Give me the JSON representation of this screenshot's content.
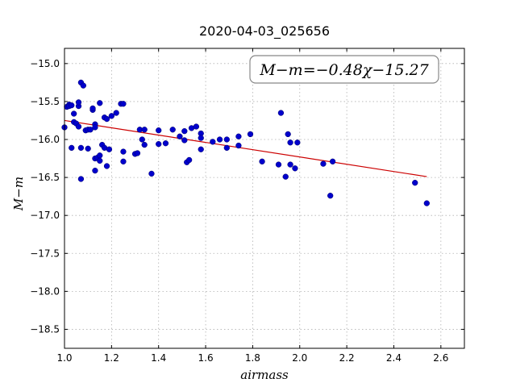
{
  "chart_data": {
    "type": "scatter",
    "title": "2020-04-03_025656",
    "xlabel": "airmass",
    "ylabel": "M−m",
    "xlim": [
      1.0,
      2.7
    ],
    "ylim": [
      -18.75,
      -14.8
    ],
    "xticks": [
      "1.0",
      "1.2",
      "1.4",
      "1.6",
      "1.8",
      "2.0",
      "2.2",
      "2.4",
      "2.6"
    ],
    "yticks": [
      "−15.0",
      "−15.5",
      "−16.0",
      "−16.5",
      "−17.0",
      "−17.5",
      "−18.0",
      "−18.5"
    ],
    "xtick_values": [
      1.0,
      1.2,
      1.4,
      1.6,
      1.8,
      2.0,
      2.2,
      2.4,
      2.6
    ],
    "ytick_values": [
      -15.0,
      -15.5,
      -16.0,
      -16.5,
      -17.0,
      -17.5,
      -18.0,
      -18.5
    ],
    "grid": true,
    "annotation": "M−m=−0.48χ−15.27",
    "fit": {
      "slope": -0.48,
      "intercept": -15.27,
      "x_range": [
        1.0,
        2.54
      ],
      "color": "#cc0000"
    },
    "point_color": "#0000cc",
    "points": [
      [
        1.0,
        -15.84
      ],
      [
        1.01,
        -15.57
      ],
      [
        1.02,
        -15.54
      ],
      [
        1.02,
        -15.56
      ],
      [
        1.03,
        -15.55
      ],
      [
        1.03,
        -16.11
      ],
      [
        1.04,
        -15.66
      ],
      [
        1.04,
        -15.77
      ],
      [
        1.05,
        -15.79
      ],
      [
        1.06,
        -15.56
      ],
      [
        1.06,
        -15.51
      ],
      [
        1.06,
        -15.83
      ],
      [
        1.07,
        -15.25
      ],
      [
        1.07,
        -16.11
      ],
      [
        1.07,
        -16.52
      ],
      [
        1.08,
        -15.29
      ],
      [
        1.09,
        -15.88
      ],
      [
        1.1,
        -15.87
      ],
      [
        1.1,
        -16.12
      ],
      [
        1.11,
        -15.87
      ],
      [
        1.12,
        -15.61
      ],
      [
        1.12,
        -15.59
      ],
      [
        1.13,
        -15.8
      ],
      [
        1.13,
        -15.84
      ],
      [
        1.13,
        -16.25
      ],
      [
        1.13,
        -16.41
      ],
      [
        1.14,
        -16.24
      ],
      [
        1.15,
        -15.52
      ],
      [
        1.15,
        -16.21
      ],
      [
        1.15,
        -16.28
      ],
      [
        1.16,
        -16.07
      ],
      [
        1.17,
        -15.71
      ],
      [
        1.17,
        -16.11
      ],
      [
        1.18,
        -15.73
      ],
      [
        1.18,
        -16.35
      ],
      [
        1.19,
        -16.13
      ],
      [
        1.2,
        -15.69
      ],
      [
        1.22,
        -15.65
      ],
      [
        1.24,
        -15.53
      ],
      [
        1.25,
        -15.53
      ],
      [
        1.25,
        -16.16
      ],
      [
        1.25,
        -16.29
      ],
      [
        1.3,
        -16.19
      ],
      [
        1.31,
        -16.18
      ],
      [
        1.32,
        -15.87
      ],
      [
        1.33,
        -16.0
      ],
      [
        1.34,
        -15.87
      ],
      [
        1.34,
        -16.07
      ],
      [
        1.37,
        -16.45
      ],
      [
        1.4,
        -15.88
      ],
      [
        1.4,
        -16.06
      ],
      [
        1.43,
        -16.05
      ],
      [
        1.46,
        -15.87
      ],
      [
        1.49,
        -15.96
      ],
      [
        1.51,
        -15.89
      ],
      [
        1.51,
        -16.01
      ],
      [
        1.52,
        -16.3
      ],
      [
        1.53,
        -16.27
      ],
      [
        1.54,
        -15.85
      ],
      [
        1.56,
        -15.83
      ],
      [
        1.58,
        -15.92
      ],
      [
        1.58,
        -15.98
      ],
      [
        1.58,
        -16.13
      ],
      [
        1.63,
        -16.03
      ],
      [
        1.66,
        -16.0
      ],
      [
        1.69,
        -16.0
      ],
      [
        1.69,
        -16.11
      ],
      [
        1.74,
        -15.96
      ],
      [
        1.74,
        -16.08
      ],
      [
        1.79,
        -15.93
      ],
      [
        1.84,
        -16.29
      ],
      [
        1.91,
        -16.33
      ],
      [
        1.92,
        -15.65
      ],
      [
        1.94,
        -16.49
      ],
      [
        1.95,
        -15.93
      ],
      [
        1.96,
        -16.04
      ],
      [
        1.96,
        -16.33
      ],
      [
        1.98,
        -16.38
      ],
      [
        1.99,
        -16.04
      ],
      [
        2.1,
        -16.32
      ],
      [
        2.13,
        -16.74
      ],
      [
        2.14,
        -16.29
      ],
      [
        2.49,
        -16.57
      ],
      [
        2.54,
        -16.84
      ]
    ]
  }
}
